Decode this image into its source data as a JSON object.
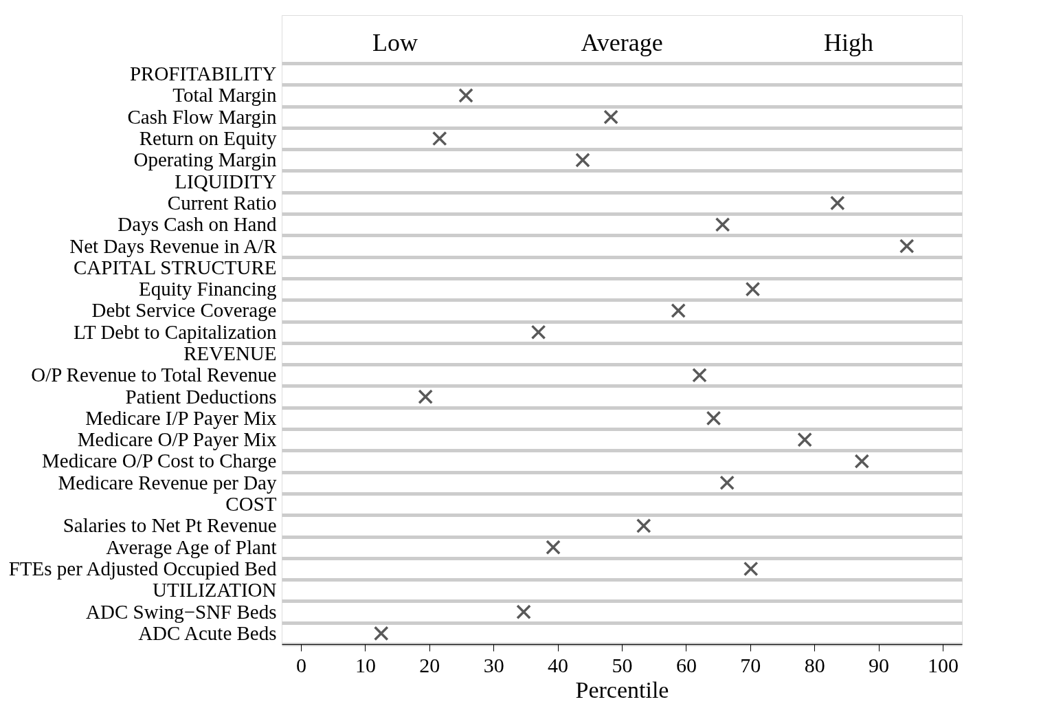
{
  "chart_data": {
    "type": "scatter",
    "orientation": "horizontal",
    "xlabel": "Percentile",
    "categories": [
      "PROFITABILITY",
      "Total Margin",
      "Cash Flow Margin",
      "Return on Equity",
      "Operating Margin",
      "LIQUIDITY",
      "Current Ratio",
      "Days Cash on Hand",
      "Net Days Revenue in A/R",
      "CAPITAL STRUCTURE",
      "Equity Financing",
      "Debt Service Coverage",
      "LT Debt to Capitalization",
      "REVENUE",
      "O/P Revenue to Total Revenue",
      "Patient Deductions",
      "Medicare I/P Payer Mix",
      "Medicare O/P Payer Mix",
      "Medicare O/P Cost to Charge",
      "Medicare Revenue per Day",
      "COST",
      "Salaries to Net Pt Revenue",
      "Average Age of Plant",
      "FTEs per Adjusted Occupied Bed",
      "UTILIZATION",
      "ADC Swing−SNF Beds",
      "ADC Acute Beds"
    ],
    "values": [
      null,
      25.7,
      48.3,
      21.6,
      43.9,
      null,
      83.6,
      65.7,
      94.4,
      null,
      70.4,
      58.8,
      37.0,
      null,
      62.1,
      19.4,
      64.3,
      78.5,
      87.4,
      66.4,
      null,
      53.4,
      39.3,
      70.1,
      null,
      34.7,
      12.5
    ],
    "color": "#595959",
    "marker": "cross",
    "xlim": [
      -3,
      103
    ],
    "xticks": [
      0,
      10,
      20,
      30,
      40,
      50,
      60,
      70,
      80,
      90,
      100
    ],
    "grid": "y",
    "annotations": [
      "Low",
      "Average",
      "High"
    ]
  }
}
